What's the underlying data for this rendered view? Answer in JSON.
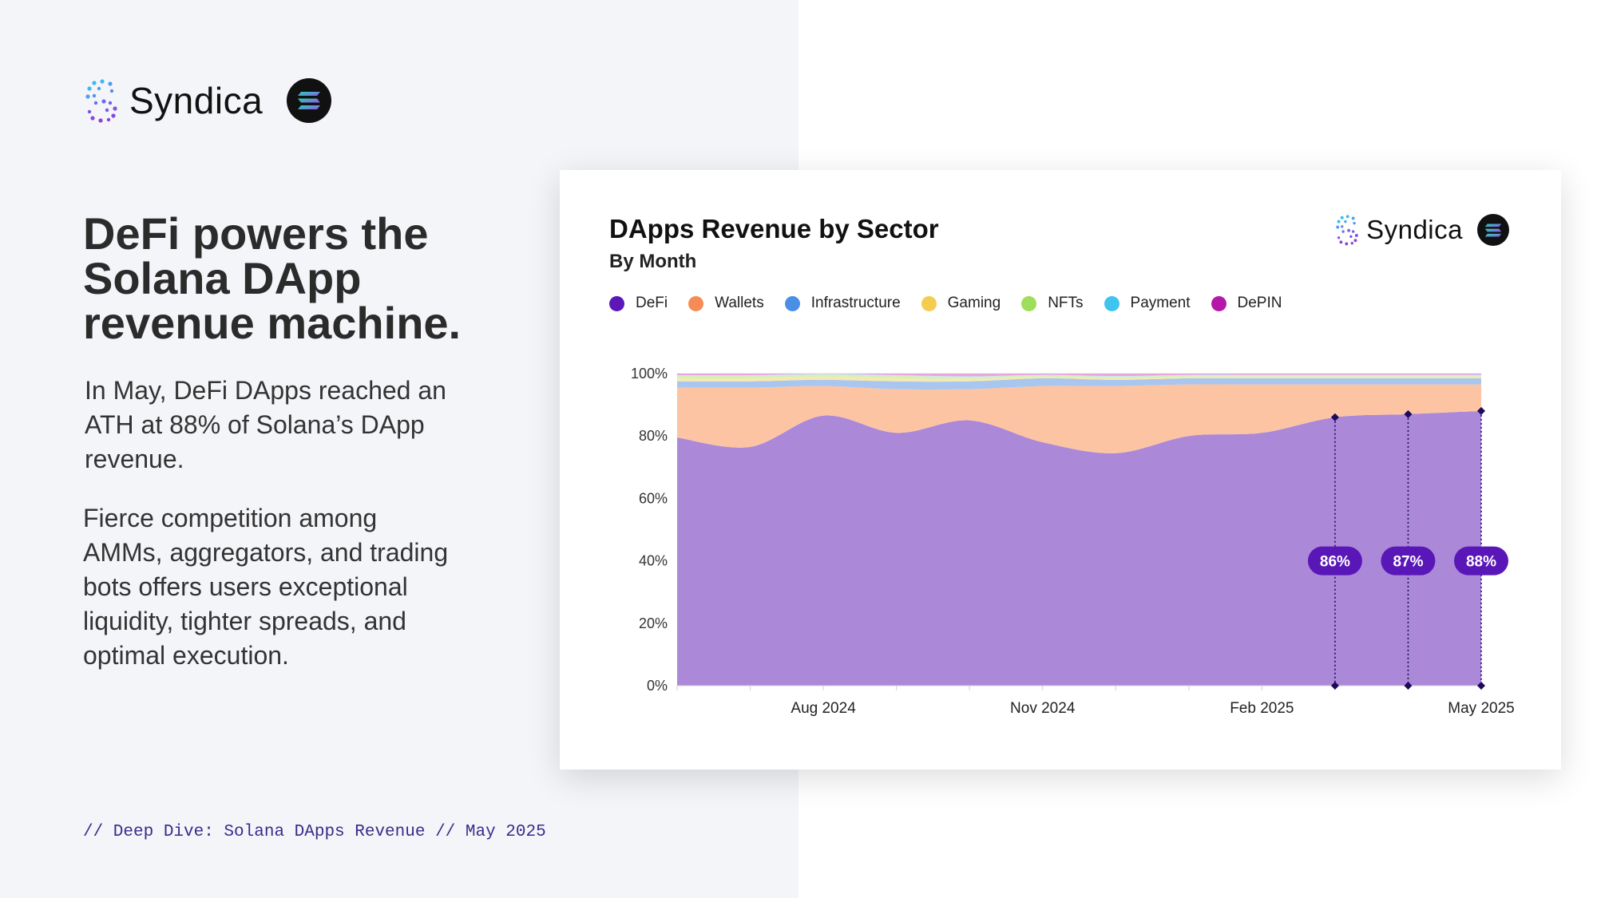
{
  "brand": {
    "name": "Syndica"
  },
  "headline": "DeFi powers the Solana DApp revenue machine.",
  "paragraph1": "In May, DeFi DApps reached an ATH at 88% of Solana’s DApp revenue.",
  "paragraph2": "Fierce competition among AMMs, aggregators, and trading bots offers users exceptional liquidity, tighter spreads, and optimal execution.",
  "footer": "// Deep Dive: Solana DApps Revenue // May 2025",
  "colors": {
    "defi_fill": "#ab88d8",
    "wallets_fill": "#fcc4a3",
    "infra_fill": "#a8c6ef",
    "gaming_fill": "#f5e8b0",
    "nfts_fill": "#d6efb8",
    "marker": "#1e0a5c",
    "badge": "#5a17b8"
  },
  "chart_data": {
    "type": "area",
    "stacked": true,
    "normalized": true,
    "title": "DApps Revenue by Sector",
    "subtitle": "By Month",
    "x_labels": [
      "Aug 2024",
      "Nov 2024",
      "Feb 2025",
      "May 2025"
    ],
    "x": [
      "Jun 2024",
      "Jul 2024",
      "Aug 2024",
      "Sep 2024",
      "Oct 2024",
      "Nov 2024",
      "Dec 2024",
      "Jan 2025",
      "Feb 2025",
      "Mar 2025",
      "Apr 2025",
      "May 2025"
    ],
    "y_ticks": [
      "0%",
      "20%",
      "40%",
      "60%",
      "80%",
      "100%"
    ],
    "ylim": [
      0,
      100
    ],
    "legend_position": "top",
    "grid": true,
    "series": [
      {
        "name": "DeFi",
        "color": "#5b17b8",
        "fill": "#ab88d8",
        "values": [
          79.5,
          76.5,
          86.5,
          81,
          85,
          78,
          74.5,
          80,
          81,
          86,
          87,
          88
        ]
      },
      {
        "name": "Wallets",
        "color": "#f58c56",
        "fill": "#fcc4a3",
        "values": [
          16,
          19,
          9.5,
          14,
          10,
          18,
          21.5,
          16.5,
          15.5,
          10.5,
          9.5,
          8.5
        ]
      },
      {
        "name": "Infrastructure",
        "color": "#4a8ee6",
        "fill": "#a8c6ef",
        "values": [
          2,
          2,
          2,
          2.5,
          2.5,
          2.5,
          2,
          2,
          2,
          2,
          2,
          2
        ]
      },
      {
        "name": "Gaming",
        "color": "#f4cc4f",
        "fill": "#f5e8b0",
        "values": [
          1,
          1,
          1,
          1,
          0.8,
          0.5,
          0.5,
          0.5,
          0.5,
          0.5,
          0.5,
          0.5
        ]
      },
      {
        "name": "NFTs",
        "color": "#9ede5a",
        "fill": "#d6efb8",
        "values": [
          0.8,
          0.8,
          0.7,
          0.8,
          0.6,
          0.4,
          0.5,
          0.4,
          0.4,
          0.4,
          0.4,
          0.4
        ]
      },
      {
        "name": "Payment",
        "color": "#3ec4ee",
        "fill": "#bce9f8",
        "values": [
          0.2,
          0.2,
          0.2,
          0.2,
          0.2,
          0.2,
          0.2,
          0.2,
          0.2,
          0.2,
          0.2,
          0.2
        ]
      },
      {
        "name": "DePIN",
        "color": "#b518a6",
        "fill": "#e7a6e0",
        "values": [
          0.5,
          0.5,
          0.1,
          0.5,
          0.9,
          0.4,
          0.8,
          0.4,
          0.4,
          0.4,
          0.4,
          0.4
        ]
      }
    ],
    "annotations": [
      {
        "x": "Mar 2025",
        "label": "86%"
      },
      {
        "x": "Apr 2025",
        "label": "87%"
      },
      {
        "x": "May 2025",
        "label": "88%"
      }
    ]
  }
}
